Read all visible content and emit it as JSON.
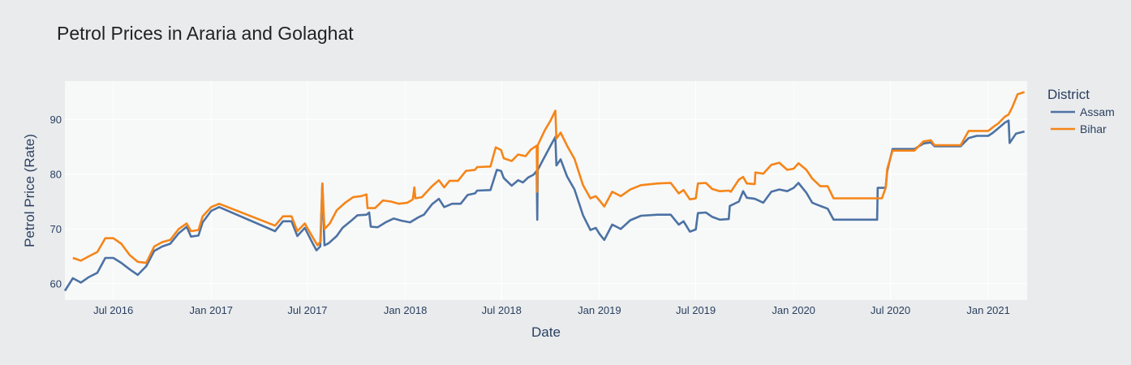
{
  "chart_data": {
    "type": "line",
    "title": "Petrol Prices in Araria and Golaghat",
    "xlabel": "Date",
    "ylabel": "Petrol Price (Rate)",
    "xlim": [
      "2016-04-01",
      "2021-03-15"
    ],
    "ylim": [
      57,
      97
    ],
    "grid": true,
    "x_ticks": [
      {
        "date": "2016-07-01",
        "label": "Jul 2016"
      },
      {
        "date": "2017-01-01",
        "label": "Jan 2017"
      },
      {
        "date": "2017-07-01",
        "label": "Jul 2017"
      },
      {
        "date": "2018-01-01",
        "label": "Jan 2018"
      },
      {
        "date": "2018-07-01",
        "label": "Jul 2018"
      },
      {
        "date": "2019-01-01",
        "label": "Jan 2019"
      },
      {
        "date": "2019-07-01",
        "label": "Jul 2019"
      },
      {
        "date": "2020-01-01",
        "label": "Jan 2020"
      },
      {
        "date": "2020-07-01",
        "label": "Jul 2020"
      },
      {
        "date": "2021-01-01",
        "label": "Jan 2021"
      }
    ],
    "y_ticks": [
      {
        "value": 60,
        "label": "60"
      },
      {
        "value": 70,
        "label": "70"
      },
      {
        "value": 80,
        "label": "80"
      },
      {
        "value": 90,
        "label": "90"
      }
    ],
    "legend": {
      "title": "District",
      "position": "top-right"
    },
    "series": [
      {
        "name": "Assam",
        "color": "#4c72a4",
        "points": [
          [
            "2016-04-01",
            58.7
          ],
          [
            "2016-04-16",
            61.0
          ],
          [
            "2016-05-01",
            60.2
          ],
          [
            "2016-05-16",
            61.2
          ],
          [
            "2016-06-01",
            62.0
          ],
          [
            "2016-06-16",
            64.7
          ],
          [
            "2016-07-01",
            64.7
          ],
          [
            "2016-07-16",
            63.8
          ],
          [
            "2016-08-01",
            62.6
          ],
          [
            "2016-08-16",
            61.6
          ],
          [
            "2016-09-01",
            63.2
          ],
          [
            "2016-09-16",
            66.0
          ],
          [
            "2016-10-01",
            66.8
          ],
          [
            "2016-10-16",
            67.3
          ],
          [
            "2016-11-01",
            69.2
          ],
          [
            "2016-11-16",
            70.4
          ],
          [
            "2016-11-24",
            68.6
          ],
          [
            "2016-12-08",
            68.8
          ],
          [
            "2016-12-16",
            71.2
          ],
          [
            "2017-01-01",
            73.3
          ],
          [
            "2017-01-16",
            74.0
          ],
          [
            "2017-05-01",
            69.6
          ],
          [
            "2017-05-16",
            71.4
          ],
          [
            "2017-06-01",
            71.4
          ],
          [
            "2017-06-12",
            68.7
          ],
          [
            "2017-06-26",
            70.2
          ],
          [
            "2017-07-10",
            67.5
          ],
          [
            "2017-07-18",
            66.1
          ],
          [
            "2017-07-25",
            66.8
          ],
          [
            "2017-07-29",
            78.3
          ],
          [
            "2017-08-02",
            67.0
          ],
          [
            "2017-08-10",
            67.4
          ],
          [
            "2017-08-25",
            68.7
          ],
          [
            "2017-09-05",
            70.2
          ],
          [
            "2017-09-20",
            71.4
          ],
          [
            "2017-10-03",
            72.5
          ],
          [
            "2017-10-20",
            72.6
          ],
          [
            "2017-10-25",
            73.0
          ],
          [
            "2017-10-28",
            70.4
          ],
          [
            "2017-11-10",
            70.3
          ],
          [
            "2017-11-25",
            71.2
          ],
          [
            "2017-12-10",
            71.9
          ],
          [
            "2017-12-25",
            71.5
          ],
          [
            "2018-01-10",
            71.2
          ],
          [
            "2018-01-25",
            72.1
          ],
          [
            "2018-02-05",
            72.6
          ],
          [
            "2018-02-20",
            74.5
          ],
          [
            "2018-03-05",
            75.5
          ],
          [
            "2018-03-15",
            74.0
          ],
          [
            "2018-03-30",
            74.6
          ],
          [
            "2018-04-15",
            74.6
          ],
          [
            "2018-04-28",
            76.2
          ],
          [
            "2018-05-12",
            76.5
          ],
          [
            "2018-05-16",
            77.0
          ],
          [
            "2018-06-10",
            77.1
          ],
          [
            "2018-06-22",
            80.8
          ],
          [
            "2018-06-30",
            80.6
          ],
          [
            "2018-07-05",
            79.3
          ],
          [
            "2018-07-20",
            77.9
          ],
          [
            "2018-08-01",
            78.9
          ],
          [
            "2018-08-10",
            78.5
          ],
          [
            "2018-08-20",
            79.4
          ],
          [
            "2018-08-30",
            79.9
          ],
          [
            "2018-09-05",
            80.6
          ],
          [
            "2018-09-06",
            71.7
          ],
          [
            "2018-09-07",
            80.8
          ],
          [
            "2018-09-20",
            83.2
          ],
          [
            "2018-10-01",
            85.2
          ],
          [
            "2018-10-10",
            86.8
          ],
          [
            "2018-10-12",
            81.6
          ],
          [
            "2018-10-20",
            82.7
          ],
          [
            "2018-11-01",
            79.6
          ],
          [
            "2018-11-15",
            77.2
          ],
          [
            "2018-12-01",
            72.5
          ],
          [
            "2018-12-15",
            69.8
          ],
          [
            "2018-12-25",
            70.2
          ],
          [
            "2019-01-01",
            69.1
          ],
          [
            "2019-01-10",
            68.0
          ],
          [
            "2019-01-25",
            70.8
          ],
          [
            "2019-02-10",
            70.0
          ],
          [
            "2019-02-28",
            71.6
          ],
          [
            "2019-03-20",
            72.4
          ],
          [
            "2019-04-20",
            72.6
          ],
          [
            "2019-05-15",
            72.6
          ],
          [
            "2019-05-30",
            70.8
          ],
          [
            "2019-06-08",
            71.4
          ],
          [
            "2019-06-20",
            69.5
          ],
          [
            "2019-07-01",
            69.9
          ],
          [
            "2019-07-05",
            72.9
          ],
          [
            "2019-07-20",
            73.0
          ],
          [
            "2019-08-01",
            72.2
          ],
          [
            "2019-08-15",
            71.7
          ],
          [
            "2019-09-01",
            71.8
          ],
          [
            "2019-09-03",
            74.2
          ],
          [
            "2019-09-20",
            75.0
          ],
          [
            "2019-09-28",
            76.9
          ],
          [
            "2019-10-05",
            75.7
          ],
          [
            "2019-10-20",
            75.5
          ],
          [
            "2019-11-05",
            74.8
          ],
          [
            "2019-11-20",
            76.8
          ],
          [
            "2019-12-05",
            77.2
          ],
          [
            "2019-12-20",
            76.9
          ],
          [
            "2020-01-01",
            77.5
          ],
          [
            "2020-01-10",
            78.4
          ],
          [
            "2020-01-25",
            76.6
          ],
          [
            "2020-02-05",
            74.8
          ],
          [
            "2020-02-20",
            74.2
          ],
          [
            "2020-03-05",
            73.7
          ],
          [
            "2020-03-16",
            71.7
          ],
          [
            "2020-06-06",
            71.7
          ],
          [
            "2020-06-07",
            77.5
          ],
          [
            "2020-06-22",
            77.5
          ],
          [
            "2020-06-25",
            80.6
          ],
          [
            "2020-07-05",
            84.6
          ],
          [
            "2020-08-01",
            84.6
          ],
          [
            "2020-08-15",
            84.6
          ],
          [
            "2020-09-01",
            85.6
          ],
          [
            "2020-09-15",
            85.8
          ],
          [
            "2020-09-22",
            85.1
          ],
          [
            "2020-11-10",
            85.1
          ],
          [
            "2020-11-25",
            86.6
          ],
          [
            "2020-12-10",
            87.0
          ],
          [
            "2021-01-01",
            87.0
          ],
          [
            "2021-01-10",
            87.6
          ],
          [
            "2021-01-20",
            88.4
          ],
          [
            "2021-02-01",
            89.4
          ],
          [
            "2021-02-08",
            89.8
          ],
          [
            "2021-02-10",
            85.7
          ],
          [
            "2021-02-22",
            87.4
          ],
          [
            "2021-03-10",
            87.8
          ]
        ]
      },
      {
        "name": "Bihar",
        "color": "#f58518",
        "points": [
          [
            "2016-04-16",
            64.7
          ],
          [
            "2016-05-01",
            64.2
          ],
          [
            "2016-05-16",
            65.0
          ],
          [
            "2016-06-01",
            65.8
          ],
          [
            "2016-06-16",
            68.3
          ],
          [
            "2016-07-01",
            68.3
          ],
          [
            "2016-07-16",
            67.3
          ],
          [
            "2016-08-01",
            65.2
          ],
          [
            "2016-08-16",
            64.0
          ],
          [
            "2016-09-01",
            63.8
          ],
          [
            "2016-09-16",
            66.8
          ],
          [
            "2016-10-01",
            67.6
          ],
          [
            "2016-10-16",
            68.0
          ],
          [
            "2016-11-01",
            70.0
          ],
          [
            "2016-11-16",
            71.0
          ],
          [
            "2016-11-24",
            69.6
          ],
          [
            "2016-12-08",
            69.8
          ],
          [
            "2016-12-16",
            72.3
          ],
          [
            "2017-01-01",
            74.0
          ],
          [
            "2017-01-16",
            74.6
          ],
          [
            "2017-05-01",
            70.6
          ],
          [
            "2017-05-16",
            72.3
          ],
          [
            "2017-06-01",
            72.3
          ],
          [
            "2017-06-12",
            69.6
          ],
          [
            "2017-06-26",
            71.0
          ],
          [
            "2017-07-10",
            68.6
          ],
          [
            "2017-07-20",
            67.0
          ],
          [
            "2017-07-26",
            67.8
          ],
          [
            "2017-07-29",
            78.3
          ],
          [
            "2017-08-02",
            70.0
          ],
          [
            "2017-08-12",
            71.0
          ],
          [
            "2017-08-25",
            73.4
          ],
          [
            "2017-09-10",
            74.8
          ],
          [
            "2017-09-25",
            75.8
          ],
          [
            "2017-10-10",
            76.0
          ],
          [
            "2017-10-20",
            76.3
          ],
          [
            "2017-10-22",
            73.8
          ],
          [
            "2017-11-05",
            73.8
          ],
          [
            "2017-11-20",
            75.2
          ],
          [
            "2017-12-05",
            75.0
          ],
          [
            "2017-12-20",
            74.6
          ],
          [
            "2018-01-05",
            74.8
          ],
          [
            "2018-01-15",
            75.4
          ],
          [
            "2018-01-18",
            77.6
          ],
          [
            "2018-01-20",
            75.6
          ],
          [
            "2018-02-01",
            75.8
          ],
          [
            "2018-02-20",
            77.8
          ],
          [
            "2018-03-05",
            78.9
          ],
          [
            "2018-03-15",
            77.6
          ],
          [
            "2018-03-25",
            78.8
          ],
          [
            "2018-04-10",
            78.8
          ],
          [
            "2018-04-25",
            80.6
          ],
          [
            "2018-05-12",
            80.8
          ],
          [
            "2018-05-16",
            81.3
          ],
          [
            "2018-06-10",
            81.4
          ],
          [
            "2018-06-20",
            84.9
          ],
          [
            "2018-06-30",
            84.4
          ],
          [
            "2018-07-05",
            82.9
          ],
          [
            "2018-07-20",
            82.4
          ],
          [
            "2018-08-01",
            83.6
          ],
          [
            "2018-08-15",
            83.3
          ],
          [
            "2018-08-25",
            84.5
          ],
          [
            "2018-09-05",
            85.2
          ],
          [
            "2018-09-06",
            76.8
          ],
          [
            "2018-09-07",
            85.3
          ],
          [
            "2018-09-20",
            88.0
          ],
          [
            "2018-10-01",
            89.8
          ],
          [
            "2018-10-10",
            91.6
          ],
          [
            "2018-10-12",
            86.5
          ],
          [
            "2018-10-20",
            87.6
          ],
          [
            "2018-11-01",
            85.2
          ],
          [
            "2018-11-15",
            82.8
          ],
          [
            "2018-12-01",
            78.0
          ],
          [
            "2018-12-15",
            75.6
          ],
          [
            "2018-12-25",
            76.0
          ],
          [
            "2019-01-01",
            75.2
          ],
          [
            "2019-01-10",
            74.1
          ],
          [
            "2019-01-25",
            76.8
          ],
          [
            "2019-02-10",
            76.0
          ],
          [
            "2019-02-28",
            77.2
          ],
          [
            "2019-03-20",
            78.0
          ],
          [
            "2019-04-20",
            78.3
          ],
          [
            "2019-05-15",
            78.4
          ],
          [
            "2019-05-30",
            76.5
          ],
          [
            "2019-06-08",
            77.1
          ],
          [
            "2019-06-20",
            75.4
          ],
          [
            "2019-07-01",
            75.6
          ],
          [
            "2019-07-05",
            78.3
          ],
          [
            "2019-07-20",
            78.4
          ],
          [
            "2019-08-01",
            77.3
          ],
          [
            "2019-08-15",
            76.9
          ],
          [
            "2019-09-01",
            77.0
          ],
          [
            "2019-09-05",
            76.8
          ],
          [
            "2019-09-20",
            79.0
          ],
          [
            "2019-09-28",
            79.5
          ],
          [
            "2019-10-05",
            78.3
          ],
          [
            "2019-10-20",
            78.2
          ],
          [
            "2019-10-21",
            80.3
          ],
          [
            "2019-11-05",
            80.1
          ],
          [
            "2019-11-20",
            81.7
          ],
          [
            "2019-12-05",
            82.1
          ],
          [
            "2019-12-20",
            80.8
          ],
          [
            "2020-01-01",
            81.0
          ],
          [
            "2020-01-10",
            82.0
          ],
          [
            "2020-01-25",
            80.8
          ],
          [
            "2020-02-05",
            79.2
          ],
          [
            "2020-02-20",
            77.8
          ],
          [
            "2020-03-05",
            77.8
          ],
          [
            "2020-03-16",
            75.6
          ],
          [
            "2020-06-15",
            75.6
          ],
          [
            "2020-06-22",
            77.5
          ],
          [
            "2020-06-25",
            81.0
          ],
          [
            "2020-07-05",
            84.3
          ],
          [
            "2020-08-01",
            84.3
          ],
          [
            "2020-08-15",
            84.3
          ],
          [
            "2020-09-01",
            86.0
          ],
          [
            "2020-09-15",
            86.2
          ],
          [
            "2020-09-22",
            85.3
          ],
          [
            "2020-11-10",
            85.3
          ],
          [
            "2020-11-25",
            87.9
          ],
          [
            "2020-12-10",
            87.9
          ],
          [
            "2021-01-01",
            87.9
          ],
          [
            "2021-01-10",
            88.6
          ],
          [
            "2021-01-20",
            89.3
          ],
          [
            "2021-02-01",
            90.5
          ],
          [
            "2021-02-08",
            90.9
          ],
          [
            "2021-02-15",
            92.2
          ],
          [
            "2021-02-25",
            94.6
          ],
          [
            "2021-03-10",
            95.0
          ]
        ]
      }
    ]
  }
}
